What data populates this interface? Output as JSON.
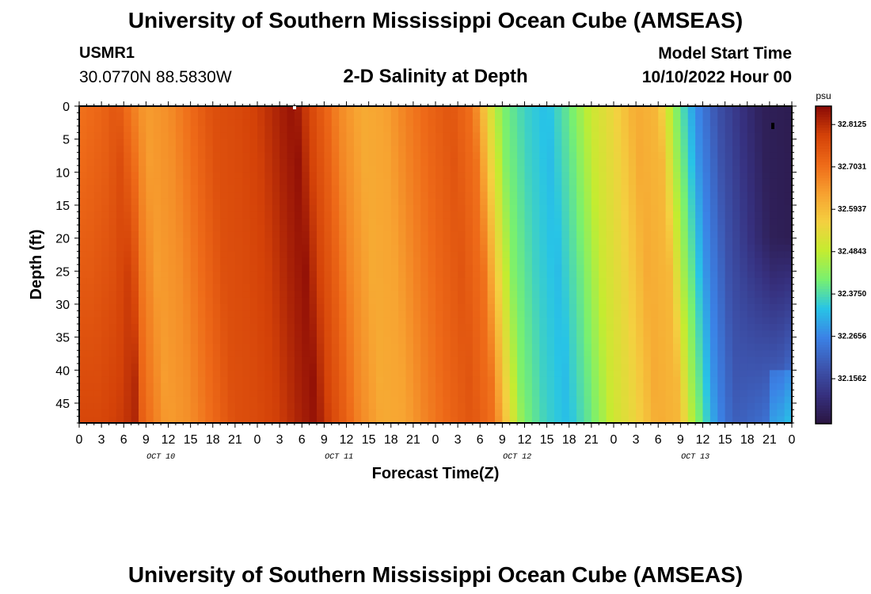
{
  "header": {
    "title": "University of Southern Mississippi Ocean Cube (AMSEAS)",
    "station": "USMR1",
    "coords": "30.0770N  88.5830W",
    "subtitle": "2-D Salinity at Depth",
    "model_start_label": "Model Start Time",
    "model_start_value": "10/10/2022 Hour 00"
  },
  "footer": {
    "title": "University of Southern Mississippi Ocean Cube (AMSEAS)"
  },
  "colors": {
    "colormap": [
      "#2a1540",
      "#36307e",
      "#3d56b0",
      "#3b82e6",
      "#28c4e6",
      "#78f070",
      "#c4ec30",
      "#f4d040",
      "#f7a030",
      "#ee6a18",
      "#d44208",
      "#8a0a06"
    ]
  },
  "chart_data": {
    "type": "heatmap",
    "xlabel": "Forecast Time(Z)",
    "ylabel": "Depth (ft)",
    "xlim": [
      0,
      96
    ],
    "ylim": [
      48,
      0
    ],
    "x_tick_labels": [
      "0",
      "3",
      "6",
      "9",
      "12",
      "15",
      "18",
      "21",
      "0",
      "3",
      "6",
      "9",
      "12",
      "15",
      "18",
      "21",
      "0",
      "3",
      "6",
      "9",
      "12",
      "15",
      "18",
      "21",
      "0",
      "3",
      "6",
      "9",
      "12",
      "15",
      "18",
      "21",
      "0"
    ],
    "date_labels": [
      {
        "text": "OCT 10",
        "hour": 11
      },
      {
        "text": "OCT 11",
        "hour": 35
      },
      {
        "text": "OCT 12",
        "hour": 59
      },
      {
        "text": "OCT 13",
        "hour": 83
      }
    ],
    "y_ticks": [
      0,
      5,
      10,
      15,
      20,
      25,
      30,
      35,
      40,
      45
    ],
    "colorbar": {
      "unit": "psu",
      "min": 32.04,
      "max": 32.86,
      "tick_values": [
        32.8125,
        32.7031,
        32.5937,
        32.4843,
        32.375,
        32.2656,
        32.1562
      ],
      "tick_labels": [
        "32.8125",
        "32.7031",
        "32.5937",
        "32.4843",
        "32.3750",
        "32.2656",
        "32.1562"
      ]
    },
    "surface_salinity_by_hour": [
      {
        "hour": 0,
        "psu": 32.7
      },
      {
        "hour": 3,
        "psu": 32.72
      },
      {
        "hour": 5,
        "psu": 32.75
      },
      {
        "hour": 7,
        "psu": 32.69
      },
      {
        "hour": 9,
        "psu": 32.64
      },
      {
        "hour": 12,
        "psu": 32.66
      },
      {
        "hour": 15,
        "psu": 32.71
      },
      {
        "hour": 18,
        "psu": 32.76
      },
      {
        "hour": 21,
        "psu": 32.77
      },
      {
        "hour": 24,
        "psu": 32.79
      },
      {
        "hour": 27,
        "psu": 32.83
      },
      {
        "hour": 29,
        "psu": 32.85
      },
      {
        "hour": 31,
        "psu": 32.78
      },
      {
        "hour": 33,
        "psu": 32.73
      },
      {
        "hour": 35,
        "psu": 32.67
      },
      {
        "hour": 38,
        "psu": 32.62
      },
      {
        "hour": 41,
        "psu": 32.63
      },
      {
        "hour": 44,
        "psu": 32.68
      },
      {
        "hour": 47,
        "psu": 32.72
      },
      {
        "hour": 50,
        "psu": 32.75
      },
      {
        "hour": 53,
        "psu": 32.7
      },
      {
        "hour": 55,
        "psu": 32.55
      },
      {
        "hour": 57,
        "psu": 32.42
      },
      {
        "hour": 60,
        "psu": 32.36
      },
      {
        "hour": 63,
        "psu": 32.33
      },
      {
        "hour": 66,
        "psu": 32.4
      },
      {
        "hour": 69,
        "psu": 32.5
      },
      {
        "hour": 72,
        "psu": 32.55
      },
      {
        "hour": 75,
        "psu": 32.62
      },
      {
        "hour": 78,
        "psu": 32.6
      },
      {
        "hour": 80,
        "psu": 32.45
      },
      {
        "hour": 83,
        "psu": 32.28
      },
      {
        "hour": 86,
        "psu": 32.18
      },
      {
        "hour": 89,
        "psu": 32.12
      },
      {
        "hour": 92,
        "psu": 32.07
      },
      {
        "hour": 96,
        "psu": 32.06
      }
    ]
  }
}
